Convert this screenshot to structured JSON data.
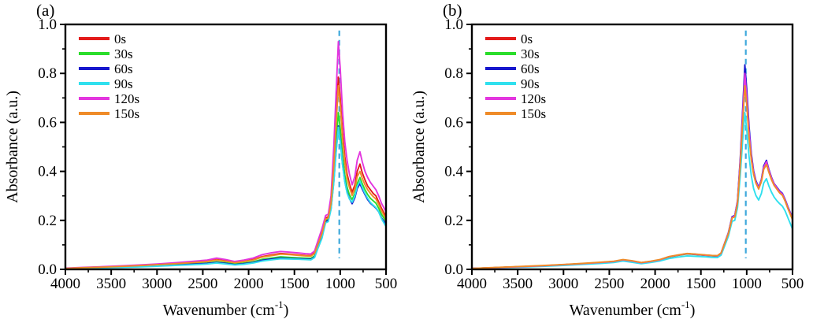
{
  "figure": {
    "background": "#ffffff",
    "frame_color": "#000000"
  },
  "chart_data": {
    "type": "line",
    "title": "",
    "xlabel": "Wavenumber (cm⁻¹)",
    "xlabel_parts": {
      "pre": "Wavenumber (cm",
      "sup": "-1",
      "post": ")"
    },
    "ylabel": "Absorbance (a.u.)",
    "xlim": [
      4000,
      500
    ],
    "ylim": [
      0.0,
      1.0
    ],
    "x_axis_reversed": true,
    "grid": false,
    "legend_position": "upper-left-inside",
    "xticks": [
      4000,
      3500,
      3000,
      2500,
      2000,
      1500,
      1000,
      500
    ],
    "xminor_ticks": [
      3750,
      3250,
      2750,
      2250,
      1750,
      1250,
      750
    ],
    "ytick_labels": [
      "0.0",
      "0.2",
      "0.4",
      "0.6",
      "0.8",
      "1.0"
    ],
    "yticks": [
      0.0,
      0.2,
      0.4,
      0.6,
      0.8,
      1.0
    ],
    "yminor_ticks": [
      0.1,
      0.3,
      0.5,
      0.7,
      0.9
    ],
    "guide_line": {
      "x": 1010,
      "y_bottom": 0.045,
      "y_top": 0.975,
      "color": "#3fa9dc",
      "style": "dashed"
    },
    "x": [
      4000,
      3800,
      3600,
      3400,
      3200,
      3000,
      2800,
      2600,
      2450,
      2350,
      2250,
      2150,
      2050,
      1950,
      1850,
      1750,
      1650,
      1550,
      1450,
      1380,
      1320,
      1280,
      1240,
      1200,
      1160,
      1130,
      1100,
      1070,
      1045,
      1020,
      1000,
      975,
      950,
      925,
      900,
      870,
      840,
      815,
      785,
      760,
      730,
      700,
      670,
      640,
      610,
      580,
      550,
      500
    ],
    "panels": [
      {
        "label": "(a)",
        "series": [
          {
            "name": "0s",
            "color": "#e31a1a",
            "y": [
              0.004,
              0.007,
              0.01,
              0.013,
              0.016,
              0.02,
              0.024,
              0.029,
              0.033,
              0.04,
              0.035,
              0.028,
              0.033,
              0.04,
              0.052,
              0.059,
              0.065,
              0.062,
              0.059,
              0.057,
              0.056,
              0.068,
              0.11,
              0.15,
              0.21,
              0.215,
              0.28,
              0.44,
              0.62,
              0.785,
              0.7,
              0.56,
              0.46,
              0.39,
              0.35,
              0.315,
              0.345,
              0.4,
              0.43,
              0.395,
              0.365,
              0.34,
              0.325,
              0.31,
              0.3,
              0.275,
              0.25,
              0.215
            ]
          },
          {
            "name": "30s",
            "color": "#2bdd2b",
            "y": [
              0.003,
              0.005,
              0.008,
              0.01,
              0.013,
              0.016,
              0.019,
              0.023,
              0.026,
              0.031,
              0.027,
              0.022,
              0.026,
              0.031,
              0.041,
              0.046,
              0.051,
              0.049,
              0.047,
              0.046,
              0.045,
              0.055,
              0.095,
              0.135,
              0.2,
              0.205,
              0.255,
              0.385,
              0.52,
              0.64,
              0.575,
              0.465,
              0.385,
              0.335,
              0.305,
              0.285,
              0.31,
              0.35,
              0.375,
              0.35,
              0.325,
              0.305,
              0.29,
              0.28,
              0.27,
              0.25,
              0.225,
              0.195
            ]
          },
          {
            "name": "60s",
            "color": "#1717cd",
            "y": [
              0.003,
              0.005,
              0.007,
              0.009,
              0.011,
              0.014,
              0.017,
              0.021,
              0.024,
              0.028,
              0.024,
              0.019,
              0.023,
              0.028,
              0.037,
              0.042,
              0.046,
              0.044,
              0.043,
              0.042,
              0.041,
              0.05,
              0.09,
              0.13,
              0.195,
              0.2,
              0.248,
              0.36,
              0.48,
              0.585,
              0.53,
              0.43,
              0.36,
              0.315,
              0.29,
              0.268,
              0.293,
              0.33,
              0.35,
              0.328,
              0.305,
              0.285,
              0.27,
              0.26,
              0.25,
              0.235,
              0.21,
              0.185
            ]
          },
          {
            "name": "90s",
            "color": "#30e0ee",
            "y": [
              0.002,
              0.004,
              0.006,
              0.008,
              0.01,
              0.013,
              0.016,
              0.019,
              0.022,
              0.026,
              0.022,
              0.018,
              0.021,
              0.026,
              0.034,
              0.039,
              0.043,
              0.042,
              0.041,
              0.04,
              0.039,
              0.048,
              0.088,
              0.126,
              0.19,
              0.195,
              0.245,
              0.355,
              0.475,
              0.58,
              0.525,
              0.427,
              0.357,
              0.312,
              0.287,
              0.274,
              0.3,
              0.338,
              0.36,
              0.335,
              0.31,
              0.29,
              0.273,
              0.262,
              0.252,
              0.235,
              0.207,
              0.175
            ]
          },
          {
            "name": "120s",
            "color": "#e336de",
            "y": [
              0.005,
              0.008,
              0.011,
              0.014,
              0.018,
              0.022,
              0.027,
              0.033,
              0.038,
              0.046,
              0.04,
              0.032,
              0.038,
              0.046,
              0.06,
              0.068,
              0.073,
              0.07,
              0.067,
              0.064,
              0.063,
              0.075,
              0.12,
              0.165,
              0.22,
              0.225,
              0.3,
              0.5,
              0.72,
              0.93,
              0.82,
              0.645,
              0.52,
              0.445,
              0.39,
              0.345,
              0.38,
              0.445,
              0.48,
              0.44,
              0.4,
              0.375,
              0.355,
              0.34,
              0.325,
              0.3,
              0.27,
              0.235
            ]
          },
          {
            "name": "150s",
            "color": "#ef8b28",
            "y": [
              0.004,
              0.007,
              0.009,
              0.012,
              0.015,
              0.019,
              0.023,
              0.028,
              0.032,
              0.038,
              0.033,
              0.027,
              0.032,
              0.038,
              0.05,
              0.056,
              0.062,
              0.06,
              0.057,
              0.055,
              0.054,
              0.065,
              0.105,
              0.145,
              0.205,
              0.21,
              0.27,
              0.42,
              0.59,
              0.75,
              0.67,
              0.535,
              0.435,
              0.372,
              0.335,
              0.302,
              0.33,
              0.378,
              0.4,
              0.372,
              0.345,
              0.325,
              0.31,
              0.297,
              0.287,
              0.265,
              0.24,
              0.205
            ]
          }
        ]
      },
      {
        "label": "(b)",
        "series": [
          {
            "name": "0s",
            "color": "#e31a1a",
            "y": [
              0.004,
              0.006,
              0.009,
              0.012,
              0.015,
              0.019,
              0.023,
              0.028,
              0.032,
              0.039,
              0.034,
              0.027,
              0.032,
              0.039,
              0.051,
              0.058,
              0.064,
              0.061,
              0.058,
              0.056,
              0.055,
              0.066,
              0.106,
              0.147,
              0.211,
              0.216,
              0.274,
              0.435,
              0.61,
              0.775,
              0.69,
              0.555,
              0.455,
              0.392,
              0.354,
              0.33,
              0.36,
              0.412,
              0.435,
              0.402,
              0.37,
              0.345,
              0.33,
              0.315,
              0.305,
              0.28,
              0.25,
              0.205
            ]
          },
          {
            "name": "30s",
            "color": "#2bdd2b",
            "y": [
              0.004,
              0.006,
              0.009,
              0.012,
              0.015,
              0.019,
              0.023,
              0.028,
              0.032,
              0.038,
              0.033,
              0.027,
              0.032,
              0.038,
              0.05,
              0.057,
              0.063,
              0.06,
              0.057,
              0.055,
              0.054,
              0.065,
              0.105,
              0.146,
              0.21,
              0.215,
              0.272,
              0.437,
              0.612,
              0.78,
              0.692,
              0.556,
              0.456,
              0.393,
              0.355,
              0.331,
              0.361,
              0.413,
              0.432,
              0.4,
              0.368,
              0.344,
              0.329,
              0.314,
              0.304,
              0.279,
              0.249,
              0.204
            ]
          },
          {
            "name": "60s",
            "color": "#1717cd",
            "y": [
              0.004,
              0.006,
              0.009,
              0.012,
              0.015,
              0.019,
              0.023,
              0.028,
              0.032,
              0.039,
              0.034,
              0.027,
              0.032,
              0.039,
              0.051,
              0.058,
              0.064,
              0.061,
              0.058,
              0.056,
              0.055,
              0.066,
              0.108,
              0.15,
              0.215,
              0.22,
              0.28,
              0.455,
              0.645,
              0.835,
              0.735,
              0.585,
              0.472,
              0.402,
              0.362,
              0.335,
              0.367,
              0.422,
              0.445,
              0.41,
              0.376,
              0.35,
              0.335,
              0.32,
              0.31,
              0.285,
              0.255,
              0.21
            ]
          },
          {
            "name": "90s",
            "color": "#30e0ee",
            "y": [
              0.003,
              0.005,
              0.008,
              0.01,
              0.013,
              0.016,
              0.02,
              0.024,
              0.028,
              0.034,
              0.029,
              0.023,
              0.028,
              0.034,
              0.044,
              0.05,
              0.055,
              0.053,
              0.051,
              0.049,
              0.048,
              0.058,
              0.096,
              0.135,
              0.196,
              0.2,
              0.252,
              0.385,
              0.52,
              0.64,
              0.57,
              0.462,
              0.382,
              0.33,
              0.302,
              0.283,
              0.31,
              0.352,
              0.37,
              0.342,
              0.315,
              0.295,
              0.28,
              0.268,
              0.258,
              0.238,
              0.21,
              0.165
            ]
          },
          {
            "name": "120s",
            "color": "#e336de",
            "y": [
              0.004,
              0.006,
              0.009,
              0.012,
              0.015,
              0.019,
              0.023,
              0.028,
              0.032,
              0.039,
              0.034,
              0.027,
              0.032,
              0.039,
              0.051,
              0.058,
              0.064,
              0.061,
              0.058,
              0.056,
              0.055,
              0.066,
              0.107,
              0.148,
              0.213,
              0.218,
              0.277,
              0.445,
              0.625,
              0.8,
              0.705,
              0.565,
              0.46,
              0.396,
              0.357,
              0.332,
              0.363,
              0.416,
              0.44,
              0.406,
              0.373,
              0.348,
              0.332,
              0.317,
              0.307,
              0.282,
              0.252,
              0.207
            ]
          },
          {
            "name": "150s",
            "color": "#ef8b28",
            "y": [
              0.004,
              0.007,
              0.01,
              0.013,
              0.016,
              0.02,
              0.024,
              0.029,
              0.033,
              0.04,
              0.035,
              0.028,
              0.033,
              0.04,
              0.052,
              0.059,
              0.065,
              0.062,
              0.059,
              0.057,
              0.056,
              0.067,
              0.106,
              0.146,
              0.21,
              0.214,
              0.27,
              0.43,
              0.595,
              0.75,
              0.672,
              0.54,
              0.448,
              0.388,
              0.352,
              0.328,
              0.358,
              0.408,
              0.428,
              0.398,
              0.366,
              0.342,
              0.327,
              0.312,
              0.302,
              0.278,
              0.248,
              0.203
            ]
          }
        ]
      }
    ]
  }
}
